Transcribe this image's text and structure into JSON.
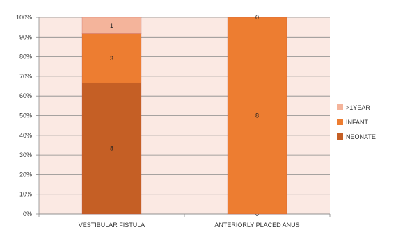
{
  "chart_data": {
    "type": "bar",
    "stacked": "percent",
    "categories": [
      "VESTIBULAR FISTULA",
      "ANTERIORLY PLACED ANUS"
    ],
    "series": [
      {
        "name": "NEONATE",
        "values": [
          8,
          0
        ],
        "color": "#C55F25"
      },
      {
        "name": "INFANT",
        "values": [
          3,
          8
        ],
        "color": "#ED7D31"
      },
      {
        "name": ">1YEAR",
        "values": [
          1,
          0
        ],
        "color": "#F4B49B"
      }
    ],
    "y_ticks": [
      "0%",
      "10%",
      "20%",
      "30%",
      "40%",
      "50%",
      "60%",
      "70%",
      "80%",
      "90%",
      "100%"
    ],
    "ylim": [
      0,
      100
    ],
    "grid": true,
    "legend": "right",
    "plot_background": "#FBE9E3",
    "gridline_color": "#8A8A8A"
  }
}
